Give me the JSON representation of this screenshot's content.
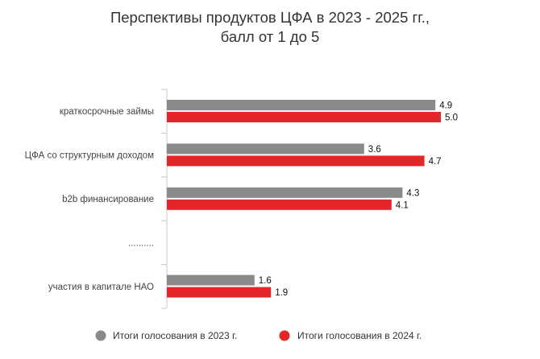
{
  "chart_data": {
    "type": "bar",
    "orientation": "horizontal",
    "title": "Перспективы продуктов ЦФА в 2023 - 2025 гг.,",
    "subtitle": "балл от 1 до 5",
    "categories": [
      "краткосрочные займы",
      "ЦФА со структурным доходом",
      "b2b финансирование",
      "..........",
      "участия в капитале НАО"
    ],
    "series": [
      {
        "name": "Итоги голосования в 2023 г.",
        "color": "#8a8a8a",
        "values": [
          4.9,
          3.6,
          4.3,
          null,
          1.6
        ],
        "labels": [
          "4.9",
          "3.6",
          "4.3",
          "",
          "1.6"
        ]
      },
      {
        "name": "Итоги голосования в 2024 г.",
        "color": "#e3262a",
        "values": [
          5.0,
          4.7,
          4.1,
          null,
          1.9
        ],
        "labels": [
          "5.0",
          "4.7",
          "4.1",
          "",
          "1.9"
        ]
      }
    ],
    "xlim": [
      0,
      5
    ],
    "grid": false,
    "legend_position": "bottom"
  }
}
